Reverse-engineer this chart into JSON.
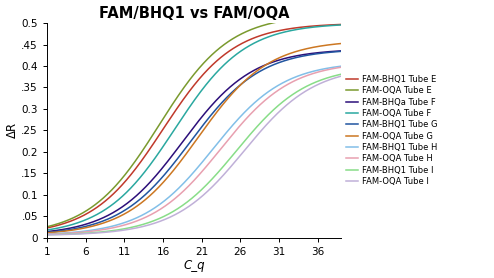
{
  "title": "FAM/BHQ1 vs FAM/OQA",
  "xlabel": "C_q",
  "ylabel": "ΔR",
  "x_ticks": [
    1,
    6,
    11,
    16,
    21,
    26,
    31,
    36
  ],
  "ylim": [
    0,
    0.5
  ],
  "xlim": [
    1,
    39
  ],
  "series": [
    {
      "label": "FAM-BHQ1 Tube E",
      "color": "#c0392b",
      "midpoint": 16.0,
      "max_val": 0.5,
      "steepness": 0.22
    },
    {
      "label": "FAM-OQA Tube E",
      "color": "#7a9a2e",
      "midpoint": 15.5,
      "max_val": 0.52,
      "steepness": 0.22
    },
    {
      "label": "FAM-BHQa Tube F",
      "color": "#2c0f7a",
      "midpoint": 18.5,
      "max_val": 0.44,
      "steepness": 0.22
    },
    {
      "label": "FAM-OQA Tube F",
      "color": "#2aa8a0",
      "midpoint": 17.5,
      "max_val": 0.5,
      "steepness": 0.22
    },
    {
      "label": "FAM-BHQ1 Tube G",
      "color": "#2155a0",
      "midpoint": 19.5,
      "max_val": 0.44,
      "steepness": 0.22
    },
    {
      "label": "FAM-OQA Tube G",
      "color": "#cc7722",
      "midpoint": 20.5,
      "max_val": 0.46,
      "steepness": 0.22
    },
    {
      "label": "FAM-BHQ1 Tube H",
      "color": "#82bfe8",
      "midpoint": 22.5,
      "max_val": 0.41,
      "steepness": 0.22
    },
    {
      "label": "FAM-OQA Tube H",
      "color": "#e8a0b0",
      "midpoint": 23.5,
      "max_val": 0.41,
      "steepness": 0.22
    },
    {
      "label": "FAM-BHQ1 Tube I",
      "color": "#88dd88",
      "midpoint": 25.5,
      "max_val": 0.4,
      "steepness": 0.22
    },
    {
      "label": "FAM-OQA Tube I",
      "color": "#c0b0d8",
      "midpoint": 26.5,
      "max_val": 0.4,
      "steepness": 0.22
    }
  ],
  "background_color": "#ffffff",
  "legend_fontsize": 6.0,
  "title_fontsize": 10.5,
  "tick_fontsize": 7.5,
  "axis_label_fontsize": 8.5,
  "linewidth": 1.1
}
